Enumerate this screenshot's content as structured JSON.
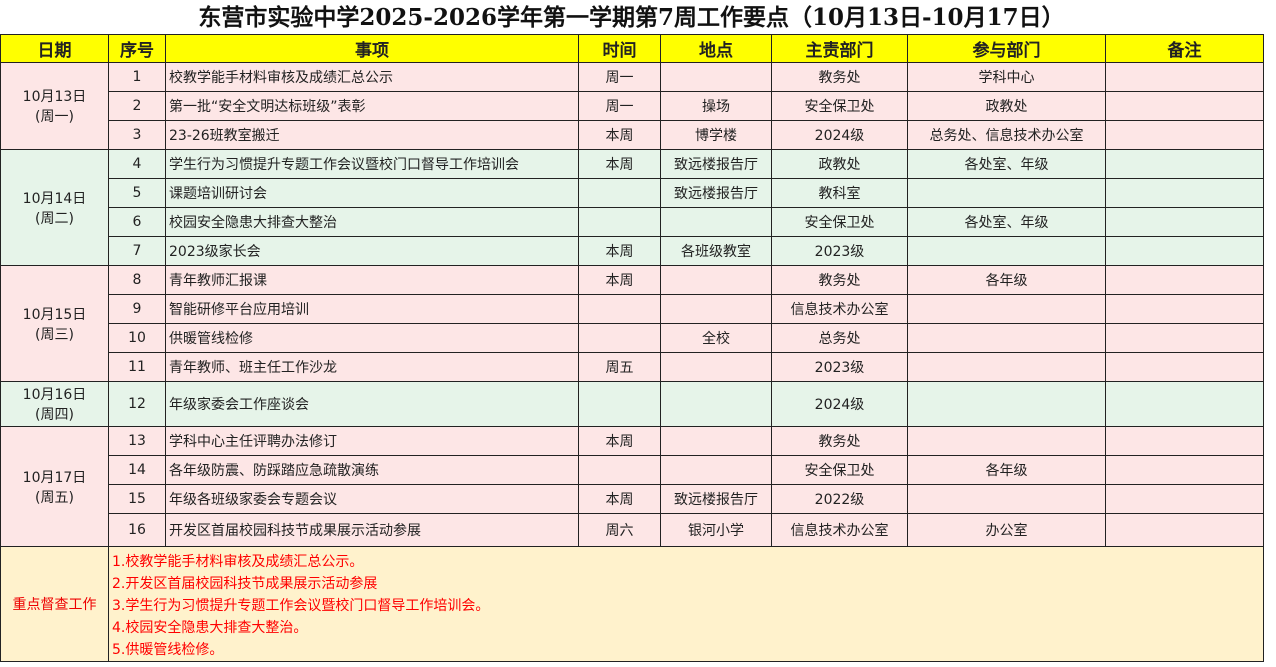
{
  "title": "东营市实验中学2025-2026学年第一学期第7周工作要点（10月13日-10月17日）",
  "headers": [
    "日期",
    "序号",
    "事项",
    "时间",
    "地点",
    "主责部门",
    "参与部门",
    "备注"
  ],
  "groups": [
    {
      "date": "10月13日",
      "weekday": "(周一)",
      "color": "pink",
      "rows": [
        {
          "no": "1",
          "item": "校教学能手材料审核及成绩汇总公示",
          "time": "周一",
          "place": "",
          "lead": "教务处",
          "part": "学科中心",
          "note": ""
        },
        {
          "no": "2",
          "item": "第一批“安全文明达标班级”表彰",
          "time": "周一",
          "place": "操场",
          "lead": "安全保卫处",
          "part": "政教处",
          "note": ""
        },
        {
          "no": "3",
          "item": "23-26班教室搬迁",
          "time": "本周",
          "place": "博学楼",
          "lead": "2024级",
          "part": "总务处、信息技术办公室",
          "note": ""
        }
      ]
    },
    {
      "date": "10月14日",
      "weekday": "(周二)",
      "color": "green",
      "rows": [
        {
          "no": "4",
          "item": "学生行为习惯提升专题工作会议暨校门口督导工作培训会",
          "time": "本周",
          "place": "致远楼报告厅",
          "lead": "政教处",
          "part": "各处室、年级",
          "note": ""
        },
        {
          "no": "5",
          "item": "课题培训研讨会",
          "time": "",
          "place": "致远楼报告厅",
          "lead": "教科室",
          "part": "",
          "note": ""
        },
        {
          "no": "6",
          "item": "校园安全隐患大排查大整治",
          "time": "",
          "place": "",
          "lead": "安全保卫处",
          "part": "各处室、年级",
          "note": ""
        },
        {
          "no": "7",
          "item": "2023级家长会",
          "time": "本周",
          "place": "各班级教室",
          "lead": "2023级",
          "part": "",
          "note": ""
        }
      ]
    },
    {
      "date": "10月15日",
      "weekday": "(周三)",
      "color": "pink",
      "rows": [
        {
          "no": "8",
          "item": "青年教师汇报课",
          "time": "本周",
          "place": "",
          "lead": "教务处",
          "part": "各年级",
          "note": ""
        },
        {
          "no": "9",
          "item": "智能研修平台应用培训",
          "time": "",
          "place": "",
          "lead": "信息技术办公室",
          "part": "",
          "note": ""
        },
        {
          "no": "10",
          "item": "供暖管线检修",
          "time": "",
          "place": "全校",
          "lead": "总务处",
          "part": "",
          "note": ""
        },
        {
          "no": "11",
          "item": "青年教师、班主任工作沙龙",
          "time": "周五",
          "place": "",
          "lead": "2023级",
          "part": "",
          "note": ""
        }
      ]
    },
    {
      "date": "10月16日",
      "weekday": "(周四)",
      "color": "green",
      "rows": [
        {
          "no": "12",
          "item": "年级家委会工作座谈会",
          "time": "",
          "place": "",
          "lead": "2024级",
          "part": "",
          "note": ""
        }
      ]
    },
    {
      "date": "10月17日",
      "weekday": "(周五)",
      "color": "pink",
      "rows": [
        {
          "no": "13",
          "item": "学科中心主任评聘办法修订",
          "time": "本周",
          "place": "",
          "lead": "教务处",
          "part": "",
          "note": ""
        },
        {
          "no": "14",
          "item": "各年级防震、防踩踏应急疏散演练",
          "time": "",
          "place": "",
          "lead": "安全保卫处",
          "part": "各年级",
          "note": ""
        },
        {
          "no": "15",
          "item": "年级各班级家委会专题会议",
          "time": "本周",
          "place": "致远楼报告厅",
          "lead": "2022级",
          "part": "",
          "note": ""
        },
        {
          "no": "16",
          "item": "开发区首届校园科技节成果展示活动参展",
          "time": "周六",
          "place": "银河小学",
          "lead": "信息技术办公室",
          "part": "办公室",
          "note": ""
        }
      ]
    }
  ],
  "focus": {
    "label": "重点督查工作",
    "items": [
      "1.校教学能手材料审核及成绩汇总公示。",
      "2.开发区首届校园科技节成果展示活动参展",
      "3.学生行为习惯提升专题工作会议暨校门口督导工作培训会。",
      "4.校园安全隐患大排查大整治。",
      "5.供暖管线检修。"
    ]
  },
  "colors": {
    "header": "#ffff00",
    "pink": "#fde6e6",
    "green": "#e6f4e9",
    "focus_bg": "#fff2cc",
    "focus_text": "#ff0000"
  }
}
